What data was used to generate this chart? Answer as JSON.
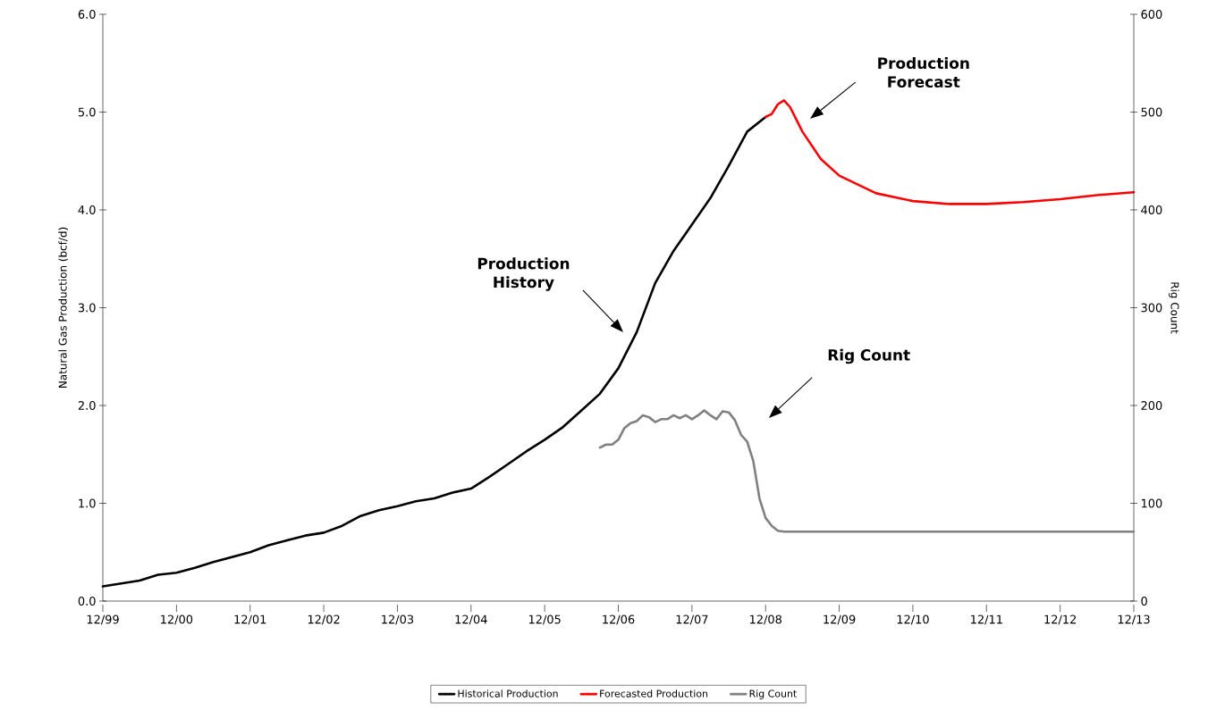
{
  "chart_data": {
    "type": "line",
    "ylabel": "Natural Gas Production (bcf/d)",
    "y2label": "Rig Count",
    "xlim": [
      "1999-12",
      "2013-12"
    ],
    "xticks": [
      {
        "value": "1999-12",
        "label": "12/99"
      },
      {
        "value": "2000-12",
        "label": "12/00"
      },
      {
        "value": "2001-12",
        "label": "12/01"
      },
      {
        "value": "2002-12",
        "label": "12/02"
      },
      {
        "value": "2003-12",
        "label": "12/03"
      },
      {
        "value": "2004-12",
        "label": "12/04"
      },
      {
        "value": "2005-12",
        "label": "12/05"
      },
      {
        "value": "2006-12",
        "label": "12/06"
      },
      {
        "value": "2007-12",
        "label": "12/07"
      },
      {
        "value": "2008-12",
        "label": "12/08"
      },
      {
        "value": "2009-12",
        "label": "12/09"
      },
      {
        "value": "2010-12",
        "label": "12/10"
      },
      {
        "value": "2011-12",
        "label": "12/11"
      },
      {
        "value": "2012-12",
        "label": "12/12"
      },
      {
        "value": "2013-12",
        "label": "12/13"
      }
    ],
    "ylim": [
      0,
      6
    ],
    "yticks": [
      {
        "value": 0,
        "label": "0.0"
      },
      {
        "value": 1,
        "label": "1.0"
      },
      {
        "value": 2,
        "label": "2.0"
      },
      {
        "value": 3,
        "label": "3.0"
      },
      {
        "value": 4,
        "label": "4.0"
      },
      {
        "value": 5,
        "label": "5.0"
      },
      {
        "value": 6,
        "label": "6.0"
      }
    ],
    "y2lim": [
      0,
      600
    ],
    "y2ticks": [
      0,
      100,
      200,
      300,
      400,
      500,
      600
    ],
    "legend": "bottom",
    "series": [
      {
        "name": "Historical Production",
        "color": "#000000",
        "x": [
          "1999-12",
          "2000-03",
          "2000-06",
          "2000-09",
          "2000-12",
          "2001-03",
          "2001-06",
          "2001-09",
          "2001-12",
          "2002-03",
          "2002-06",
          "2002-09",
          "2002-12",
          "2003-03",
          "2003-06",
          "2003-09",
          "2003-12",
          "2004-03",
          "2004-06",
          "2004-09",
          "2004-12",
          "2005-03",
          "2005-06",
          "2005-09",
          "2005-12",
          "2006-03",
          "2006-06",
          "2006-09",
          "2006-12",
          "2007-03",
          "2007-06",
          "2007-09",
          "2007-12",
          "2008-03",
          "2008-06",
          "2008-09",
          "2008-12"
        ],
        "values": [
          0.15,
          0.18,
          0.21,
          0.27,
          0.29,
          0.34,
          0.4,
          0.45,
          0.5,
          0.57,
          0.62,
          0.67,
          0.7,
          0.77,
          0.87,
          0.93,
          0.97,
          1.02,
          1.05,
          1.11,
          1.15,
          1.27,
          1.4,
          1.53,
          1.65,
          1.78,
          1.95,
          2.12,
          2.38,
          2.75,
          3.25,
          3.58,
          3.85,
          4.12,
          4.45,
          4.8,
          4.95
        ]
      },
      {
        "name": "Forecasted Production",
        "color": "#ff0000",
        "x": [
          "2008-12",
          "2009-01",
          "2009-02",
          "2009-03",
          "2009-04",
          "2009-06",
          "2009-09",
          "2009-12",
          "2010-06",
          "2010-12",
          "2011-06",
          "2011-12",
          "2012-06",
          "2012-12",
          "2013-06",
          "2013-12"
        ],
        "values": [
          4.95,
          4.98,
          5.08,
          5.12,
          5.05,
          4.8,
          4.52,
          4.35,
          4.17,
          4.09,
          4.06,
          4.06,
          4.08,
          4.11,
          4.15,
          4.18
        ]
      },
      {
        "name": "Rig Count",
        "color": "#808080",
        "axis": "y2",
        "x": [
          "2006-09",
          "2006-10",
          "2006-11",
          "2006-12",
          "2007-01",
          "2007-02",
          "2007-03",
          "2007-04",
          "2007-05",
          "2007-06",
          "2007-07",
          "2007-08",
          "2007-09",
          "2007-10",
          "2007-11",
          "2007-12",
          "2008-01",
          "2008-02",
          "2008-03",
          "2008-04",
          "2008-05",
          "2008-06",
          "2008-07",
          "2008-08",
          "2008-09",
          "2008-10",
          "2008-11",
          "2008-12",
          "2009-01",
          "2009-02",
          "2009-03",
          "2009-06",
          "2013-12"
        ],
        "values": [
          157,
          160,
          160,
          165,
          177,
          182,
          184,
          190,
          188,
          183,
          186,
          186,
          190,
          187,
          190,
          186,
          190,
          195,
          190,
          186,
          194,
          193,
          185,
          170,
          163,
          143,
          105,
          85,
          77,
          72,
          71,
          71,
          71
        ]
      }
    ],
    "annotations": [
      "Production History",
      "Production Forecast",
      "Rig Count"
    ]
  }
}
